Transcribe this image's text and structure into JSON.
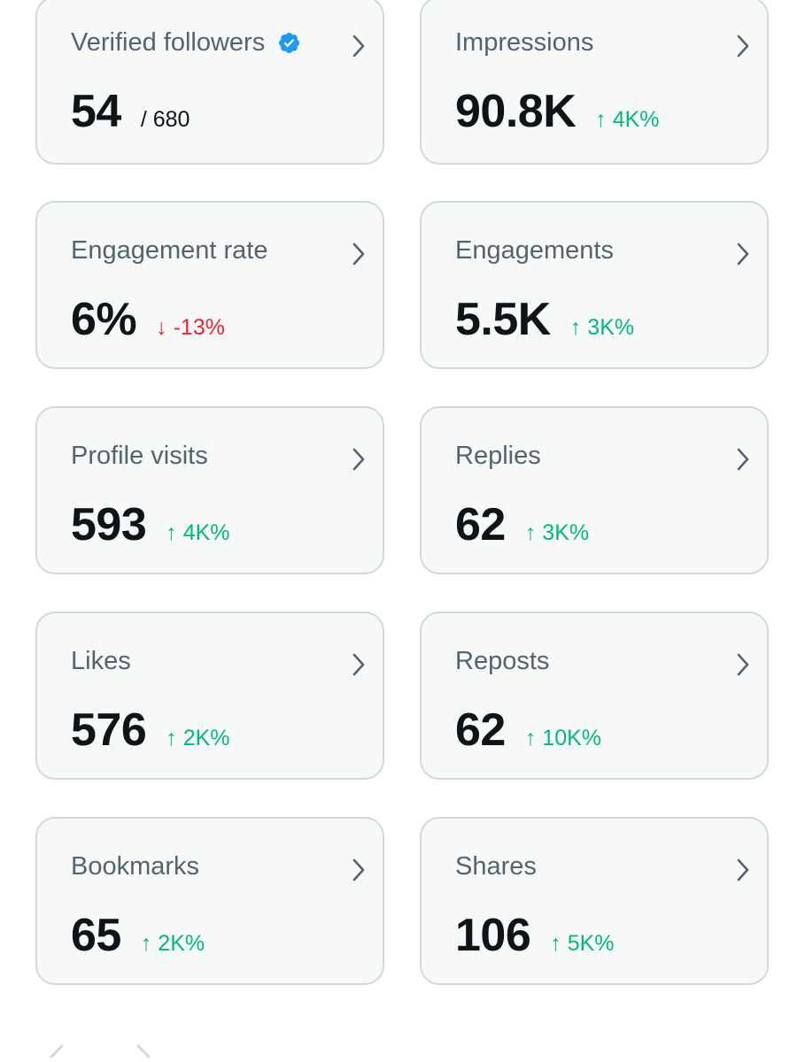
{
  "colors": {
    "card_bg": "#f7f9f9",
    "card_border": "#cfd9de",
    "title": "#536471",
    "value": "#0f1419",
    "up": "#00ba7c",
    "down": "#f4212e",
    "verified": "#1d9bf0"
  },
  "cards": [
    {
      "title": "Verified followers",
      "value": "54",
      "sub": "/ 680",
      "icon": "verified-badge-icon"
    },
    {
      "title": "Impressions",
      "value": "90.8K",
      "change": "↑ 4K%",
      "direction": "up"
    },
    {
      "title": "Engagement rate",
      "value": "6%",
      "change": "↓ -13%",
      "direction": "down"
    },
    {
      "title": "Engagements",
      "value": "5.5K",
      "change": "↑ 3K%",
      "direction": "up"
    },
    {
      "title": "Profile visits",
      "value": "593",
      "change": "↑ 4K%",
      "direction": "up"
    },
    {
      "title": "Replies",
      "value": "62",
      "change": "↑ 3K%",
      "direction": "up"
    },
    {
      "title": "Likes",
      "value": "576",
      "change": "↑ 2K%",
      "direction": "up"
    },
    {
      "title": "Reposts",
      "value": "62",
      "change": "↑ 10K%",
      "direction": "up"
    },
    {
      "title": "Bookmarks",
      "value": "65",
      "change": "↑ 2K%",
      "direction": "up"
    },
    {
      "title": "Shares",
      "value": "106",
      "change": "↑ 5K%",
      "direction": "up"
    }
  ],
  "icons": {
    "chevron": "chevron-right-icon",
    "nav_prev": "chevron-left-icon",
    "nav_next": "chevron-right-icon"
  }
}
